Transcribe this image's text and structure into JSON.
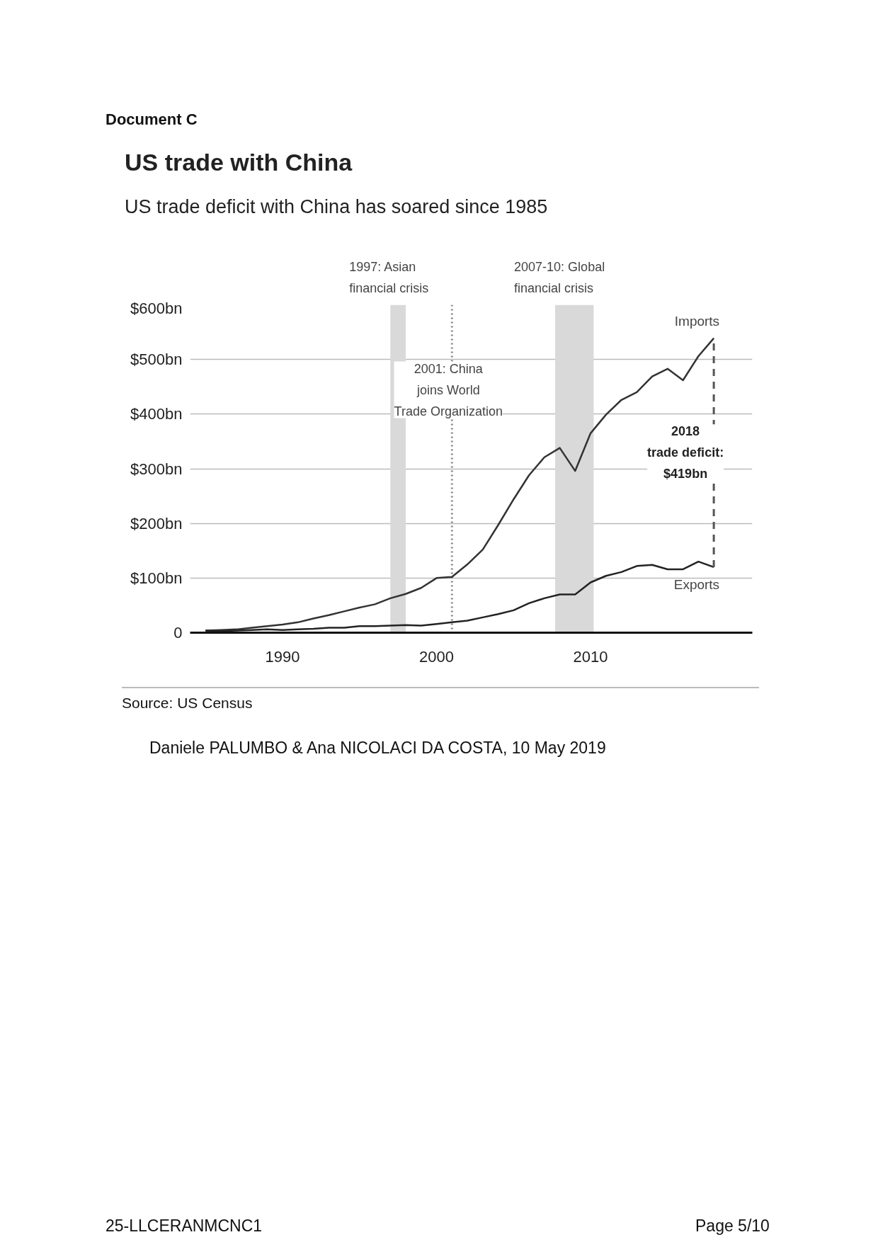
{
  "chart_data": {
    "type": "line",
    "title": "US trade with China",
    "subtitle": "US trade deficit with China has soared since 1985",
    "x": [
      1985,
      1986,
      1987,
      1988,
      1989,
      1990,
      1991,
      1992,
      1993,
      1994,
      1995,
      1996,
      1997,
      1998,
      1999,
      2000,
      2001,
      2002,
      2003,
      2004,
      2005,
      2006,
      2007,
      2008,
      2009,
      2010,
      2011,
      2012,
      2013,
      2014,
      2015,
      2016,
      2017,
      2018
    ],
    "series": [
      {
        "name": "Imports",
        "color": "#333333",
        "values": [
          4,
          5,
          6,
          9,
          12,
          15,
          19,
          26,
          32,
          39,
          46,
          52,
          63,
          71,
          82,
          100,
          102,
          125,
          152,
          197,
          244,
          288,
          321,
          338,
          296,
          365,
          399,
          426,
          440,
          469,
          483,
          462,
          506,
          539
        ]
      },
      {
        "name": "Exports",
        "color": "#222222",
        "values": [
          4,
          3,
          4,
          5,
          6,
          5,
          6,
          7,
          9,
          9,
          12,
          12,
          13,
          14,
          13,
          16,
          19,
          22,
          28,
          34,
          41,
          54,
          63,
          70,
          70,
          92,
          104,
          111,
          122,
          124,
          116,
          116,
          130,
          120
        ]
      }
    ],
    "xlim": [
      1984,
      2020.5
    ],
    "ylim": [
      0,
      600
    ],
    "xticks": [
      1990,
      2000,
      2010
    ],
    "yticks": [
      0,
      {
        "value": 100,
        "label": "$100bn"
      },
      {
        "value": 200,
        "label": "$200bn"
      },
      {
        "value": 300,
        "label": "$300bn"
      },
      {
        "value": 400,
        "label": "$400bn"
      },
      {
        "value": 500,
        "label": "$500bn"
      },
      {
        "value": 600,
        "label": "$600bn"
      }
    ],
    "grid": "y",
    "line_style": "solid",
    "bands": [
      {
        "axis": "x",
        "from": 1997,
        "to": 1998,
        "label": "1997: Asian\nfinancial crisis",
        "color": "#d9d9d9"
      },
      {
        "axis": "x",
        "from": 2007.7,
        "to": 2010.2,
        "label": "2007-10: Global\nfinancial crisis",
        "color": "#d9d9d9"
      }
    ],
    "ref_lines": [
      {
        "axis": "x",
        "value": 2001,
        "label": "2001: China\njoins World\nTrade Organization",
        "color": "#888888",
        "line_style": "dotted"
      }
    ],
    "annotations": [
      "Document C",
      "Source: US Census",
      "Daniele PALUMBO & Ana NICOLACI DA COSTA, 10 May 2019",
      "25-LLCERANMCNC1",
      "Page 5/10",
      "2018\ntrade deficit:\n$419bn"
    ]
  }
}
